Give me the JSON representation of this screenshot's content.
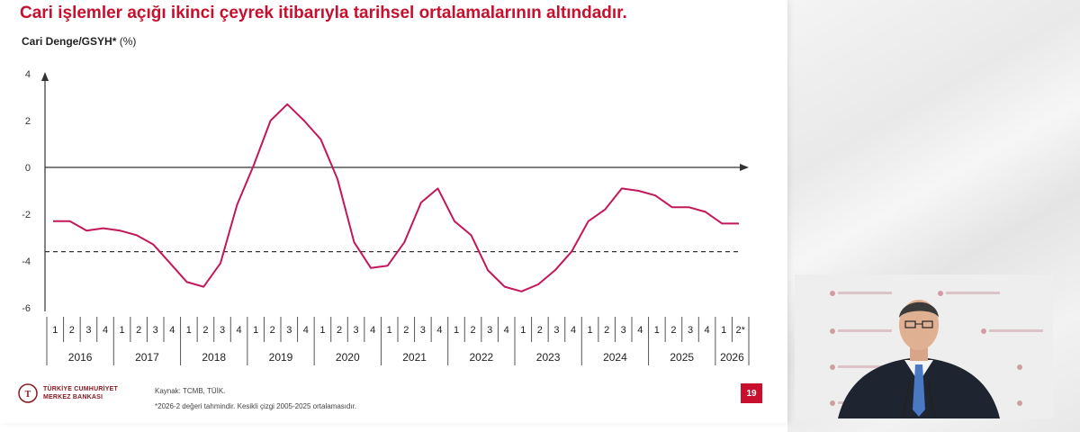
{
  "headline": "Cari işlemler açığı ikinci çeyrek itibarıyla tarihsel ortalamalarının altındadır.",
  "y_title_bold": "Cari Denge/GSYH*",
  "y_title_unit": "(%)",
  "logo_line1": "TÜRKİYE CUMHURİYET",
  "logo_line2": "MERKEZ BANKASI",
  "source": "Kaynak: TCMB, TÜİK.",
  "note": "*2026-2 değeri tahmindir. Kesikli çizgi 2005-2025 ortalamasıdır.",
  "page_number": "19",
  "colors": {
    "accent": "#c8102e",
    "line": "#c2185b"
  },
  "chart_data": {
    "type": "line",
    "ylim": [
      -6,
      4
    ],
    "yticks": [
      4,
      2,
      0,
      -2,
      -4,
      -6
    ],
    "years": [
      "2016",
      "2017",
      "2018",
      "2019",
      "2020",
      "2021",
      "2022",
      "2023",
      "2024",
      "2025",
      "2026"
    ],
    "quarter_labels": [
      "1",
      "2",
      "3",
      "4",
      "1",
      "2",
      "3",
      "4",
      "1",
      "2",
      "3",
      "4",
      "1",
      "2",
      "3",
      "4",
      "1",
      "2",
      "3",
      "4",
      "1",
      "2",
      "3",
      "4",
      "1",
      "2",
      "3",
      "4",
      "1",
      "2",
      "3",
      "4",
      "1",
      "2",
      "3",
      "4",
      "1",
      "2",
      "3",
      "4",
      "1",
      "2*"
    ],
    "series": [
      {
        "values": [
          -2.3,
          -2.3,
          -2.7,
          -2.6,
          -2.7,
          -2.9,
          -3.3,
          -4.1,
          -4.9,
          -5.1,
          -4.1,
          -1.6,
          0.1,
          2.0,
          2.7,
          2.0,
          1.2,
          -0.5,
          -3.2,
          -4.3,
          -4.2,
          -3.2,
          -1.5,
          -0.9,
          -2.3,
          -2.9,
          -4.4,
          -5.1,
          -5.3,
          -5.0,
          -4.4,
          -3.6,
          -2.3,
          -1.8,
          -0.9,
          -1.0,
          -1.2,
          -1.7,
          -1.7,
          -1.9,
          -2.4,
          -2.4
        ]
      }
    ],
    "average": -3.6,
    "grid": false
  }
}
